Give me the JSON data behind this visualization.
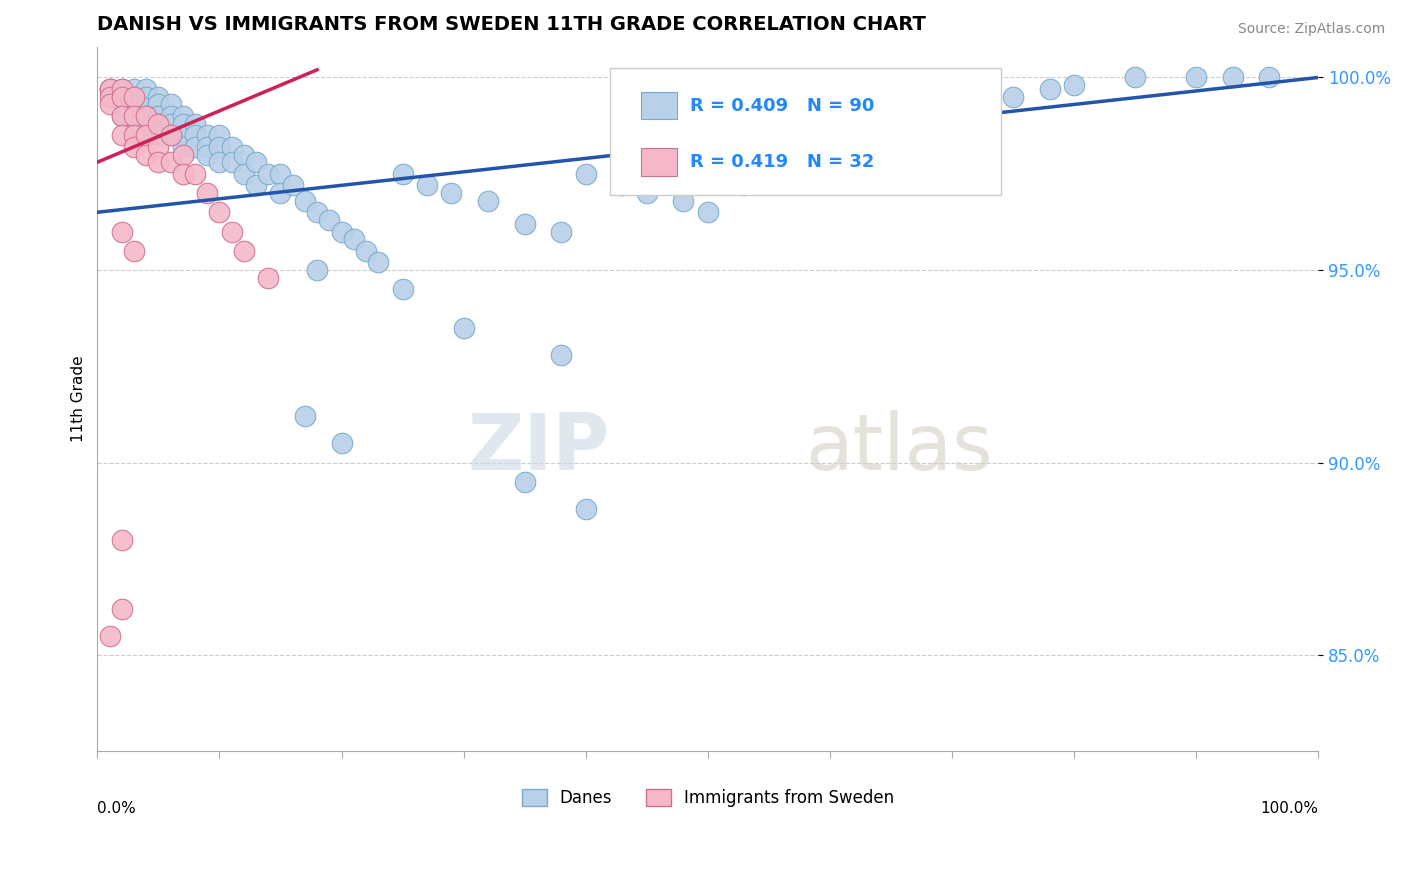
{
  "title": "DANISH VS IMMIGRANTS FROM SWEDEN 11TH GRADE CORRELATION CHART",
  "source": "Source: ZipAtlas.com",
  "ylabel": "11th Grade",
  "legend_danes": "Danes",
  "legend_immigrants": "Immigrants from Sweden",
  "r_danes": 0.409,
  "n_danes": 90,
  "r_immigrants": 0.419,
  "n_immigrants": 32,
  "color_danes": "#b8d0e8",
  "color_danes_edge": "#7aaacb",
  "color_danes_line": "#2255aa",
  "color_immigrants": "#f5b8c8",
  "color_immigrants_edge": "#d07090",
  "color_immigrants_line": "#cc2255",
  "xlim": [
    0.0,
    1.0
  ],
  "ylim": [
    0.825,
    1.008
  ],
  "yticks": [
    0.85,
    0.9,
    0.95,
    1.0
  ],
  "ytick_labels": [
    "85.0%",
    "90.0%",
    "95.0%",
    "100.0%"
  ],
  "danes_x": [
    0.01,
    0.01,
    0.02,
    0.02,
    0.02,
    0.02,
    0.03,
    0.03,
    0.03,
    0.03,
    0.03,
    0.04,
    0.04,
    0.04,
    0.04,
    0.04,
    0.05,
    0.05,
    0.05,
    0.05,
    0.05,
    0.06,
    0.06,
    0.06,
    0.06,
    0.07,
    0.07,
    0.07,
    0.07,
    0.08,
    0.08,
    0.08,
    0.09,
    0.09,
    0.09,
    0.1,
    0.1,
    0.1,
    0.11,
    0.11,
    0.12,
    0.12,
    0.13,
    0.13,
    0.14,
    0.15,
    0.15,
    0.16,
    0.17,
    0.18,
    0.19,
    0.2,
    0.21,
    0.22,
    0.23,
    0.25,
    0.27,
    0.29,
    0.32,
    0.35,
    0.38,
    0.4,
    0.43,
    0.45,
    0.48,
    0.5,
    0.53,
    0.55,
    0.58,
    0.6,
    0.63,
    0.65,
    0.68,
    0.7,
    0.72,
    0.75,
    0.78,
    0.8,
    0.85,
    0.9,
    0.93,
    0.96,
    0.18,
    0.25,
    0.3,
    0.38,
    0.17,
    0.2,
    0.35,
    0.4
  ],
  "danes_y": [
    0.997,
    0.997,
    0.997,
    0.995,
    0.993,
    0.99,
    0.997,
    0.995,
    0.993,
    0.99,
    0.988,
    0.997,
    0.995,
    0.992,
    0.99,
    0.988,
    0.995,
    0.993,
    0.99,
    0.988,
    0.985,
    0.993,
    0.99,
    0.988,
    0.985,
    0.99,
    0.988,
    0.985,
    0.982,
    0.988,
    0.985,
    0.982,
    0.985,
    0.982,
    0.98,
    0.985,
    0.982,
    0.978,
    0.982,
    0.978,
    0.98,
    0.975,
    0.978,
    0.972,
    0.975,
    0.975,
    0.97,
    0.972,
    0.968,
    0.965,
    0.963,
    0.96,
    0.958,
    0.955,
    0.952,
    0.975,
    0.972,
    0.97,
    0.968,
    0.962,
    0.96,
    0.975,
    0.972,
    0.97,
    0.968,
    0.965,
    0.972,
    0.975,
    0.978,
    0.98,
    0.982,
    0.985,
    0.988,
    0.99,
    0.992,
    0.995,
    0.997,
    0.998,
    1.0,
    1.0,
    1.0,
    1.0,
    0.95,
    0.945,
    0.935,
    0.928,
    0.912,
    0.905,
    0.895,
    0.888
  ],
  "immigrants_x": [
    0.01,
    0.01,
    0.01,
    0.02,
    0.02,
    0.02,
    0.02,
    0.03,
    0.03,
    0.03,
    0.03,
    0.04,
    0.04,
    0.04,
    0.05,
    0.05,
    0.05,
    0.06,
    0.06,
    0.07,
    0.07,
    0.08,
    0.09,
    0.1,
    0.11,
    0.12,
    0.14,
    0.02,
    0.03,
    0.02,
    0.02,
    0.01
  ],
  "immigrants_y": [
    0.997,
    0.995,
    0.993,
    0.997,
    0.995,
    0.99,
    0.985,
    0.995,
    0.99,
    0.985,
    0.982,
    0.99,
    0.985,
    0.98,
    0.988,
    0.982,
    0.978,
    0.985,
    0.978,
    0.98,
    0.975,
    0.975,
    0.97,
    0.965,
    0.96,
    0.955,
    0.948,
    0.96,
    0.955,
    0.88,
    0.862,
    0.855
  ],
  "danes_trendline_x0": 0.0,
  "danes_trendline_y0": 0.965,
  "danes_trendline_x1": 1.0,
  "danes_trendline_y1": 1.0,
  "immigrants_trendline_x0": 0.0,
  "immigrants_trendline_y0": 0.978,
  "immigrants_trendline_x1": 0.18,
  "immigrants_trendline_y1": 1.002
}
